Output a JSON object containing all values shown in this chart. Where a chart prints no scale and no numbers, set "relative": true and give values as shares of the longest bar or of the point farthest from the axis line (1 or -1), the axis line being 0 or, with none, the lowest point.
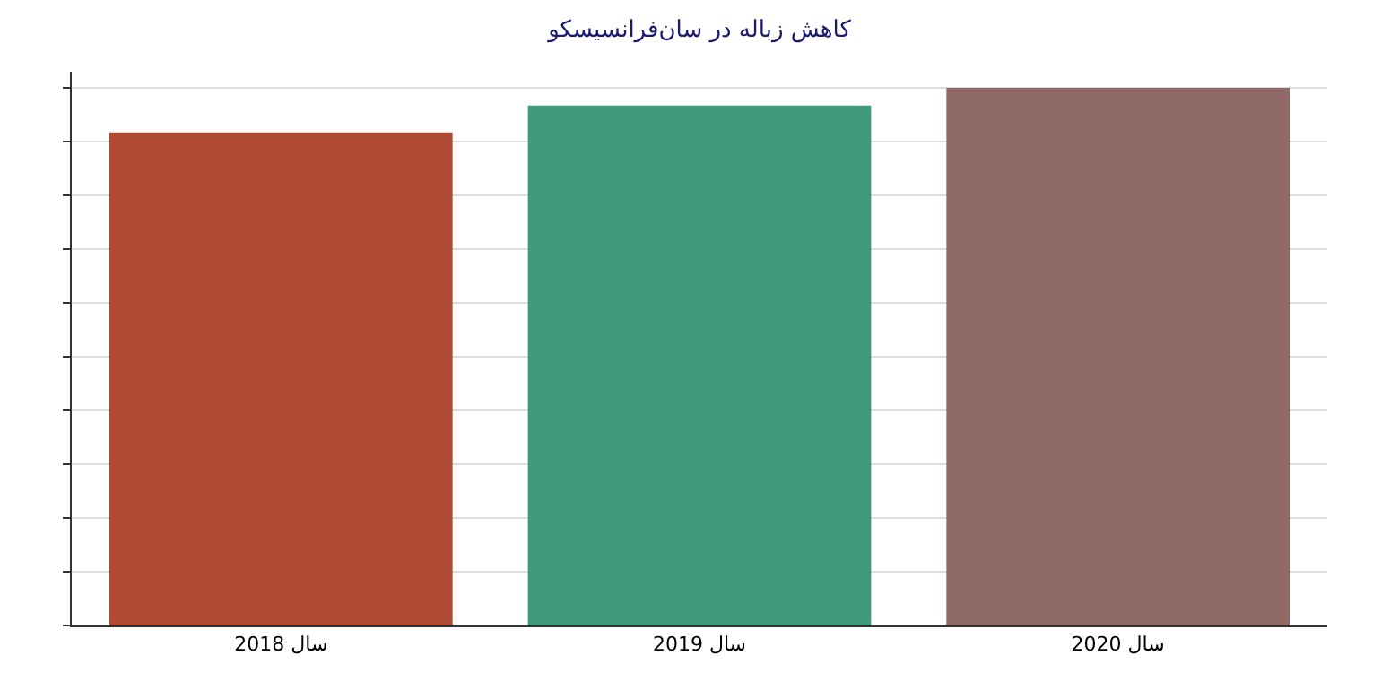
{
  "chart_data": {
    "type": "bar",
    "title": "کاهش زباله در سان‌فرانسیسکو",
    "categories": [
      "سال 2018",
      "سال 2019",
      "سال 2020"
    ],
    "relative": true,
    "colors": [
      "#b04a32",
      "#3f9a7a",
      "#8f6a66"
    ],
    "values": [
      0.917,
      0.967,
      1
    ],
    "grid": "y"
  }
}
